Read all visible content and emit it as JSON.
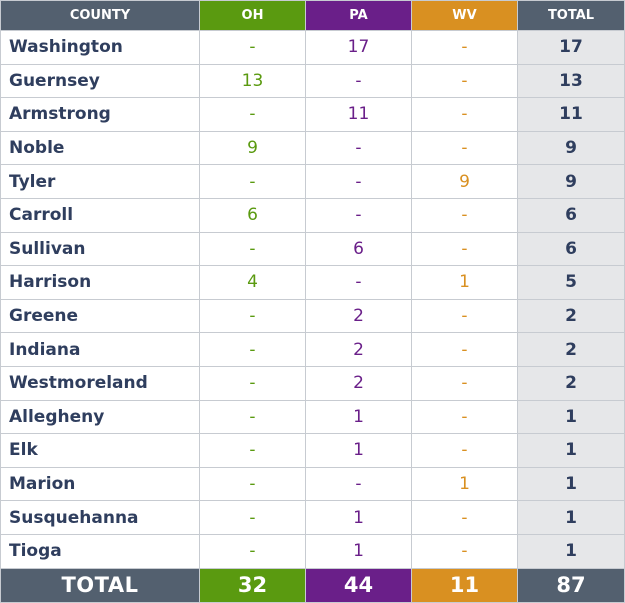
{
  "colors": {
    "county_header_bg": "#53606f",
    "oh": "#5a9a10",
    "pa": "#6a1f89",
    "wv": "#d99021",
    "total_header_bg": "#53606f",
    "name_text": "#2f3e5e",
    "total_col_bg": "#e6e7e9"
  },
  "headers": {
    "county": "COUNTY",
    "oh": "OH",
    "pa": "PA",
    "wv": "WV",
    "total": "TOTAL"
  },
  "rows": [
    {
      "county": "Washington",
      "oh": "-",
      "pa": "17",
      "wv": "-",
      "total": "17"
    },
    {
      "county": "Guernsey",
      "oh": "13",
      "pa": "-",
      "wv": "-",
      "total": "13"
    },
    {
      "county": "Armstrong",
      "oh": "-",
      "pa": "11",
      "wv": "-",
      "total": "11"
    },
    {
      "county": "Noble",
      "oh": "9",
      "pa": "-",
      "wv": "-",
      "total": "9"
    },
    {
      "county": "Tyler",
      "oh": "-",
      "pa": "-",
      "wv": "9",
      "total": "9"
    },
    {
      "county": "Carroll",
      "oh": "6",
      "pa": "-",
      "wv": "-",
      "total": "6"
    },
    {
      "county": "Sullivan",
      "oh": "-",
      "pa": "6",
      "wv": "-",
      "total": "6"
    },
    {
      "county": "Harrison",
      "oh": "4",
      "pa": "-",
      "wv": "1",
      "total": "5"
    },
    {
      "county": "Greene",
      "oh": "-",
      "pa": "2",
      "wv": "-",
      "total": "2"
    },
    {
      "county": "Indiana",
      "oh": "-",
      "pa": "2",
      "wv": "-",
      "total": "2"
    },
    {
      "county": "Westmoreland",
      "oh": "-",
      "pa": "2",
      "wv": "-",
      "total": "2"
    },
    {
      "county": "Allegheny",
      "oh": "-",
      "pa": "1",
      "wv": "-",
      "total": "1"
    },
    {
      "county": "Elk",
      "oh": "-",
      "pa": "1",
      "wv": "-",
      "total": "1"
    },
    {
      "county": "Marion",
      "oh": "-",
      "pa": "-",
      "wv": "1",
      "total": "1"
    },
    {
      "county": "Susquehanna",
      "oh": "-",
      "pa": "1",
      "wv": "-",
      "total": "1"
    },
    {
      "county": "Tioga",
      "oh": "-",
      "pa": "1",
      "wv": "-",
      "total": "1"
    }
  ],
  "footer": {
    "label": "TOTAL",
    "oh": "32",
    "pa": "44",
    "wv": "11",
    "total": "87"
  }
}
